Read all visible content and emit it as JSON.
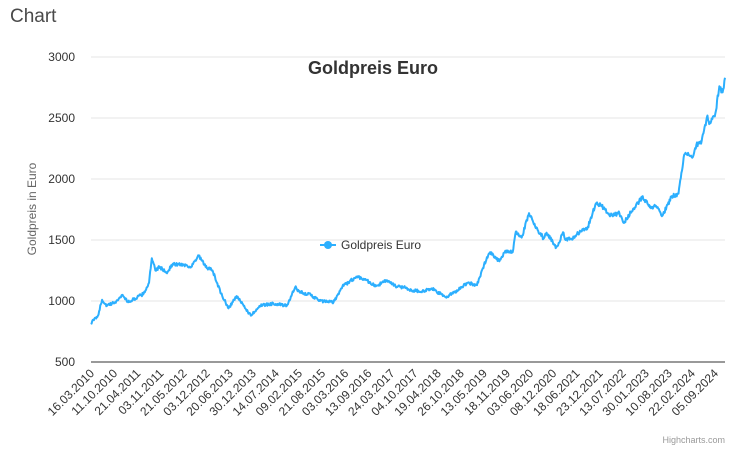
{
  "page": {
    "heading": "Chart"
  },
  "credits": "Highcharts.com",
  "colors": {
    "series": "#2caffe",
    "grid": "#e6e6e6",
    "axis_line": "#333333"
  },
  "chart_data": {
    "type": "line",
    "title": "Goldpreis Euro",
    "ylabel": "Goldpreis in Euro",
    "ylim": [
      500,
      3000
    ],
    "yticks": [
      500,
      1000,
      1500,
      2000,
      2500,
      3000
    ],
    "xlim": [
      "2010-03-16",
      "2025-03-31"
    ],
    "xtick_labels": [
      "16.03.2010",
      "11.10.2010",
      "21.04.2011",
      "03.11.2011",
      "21.05.2012",
      "03.12.2012",
      "20.06.2013",
      "30.12.2013",
      "14.07.2014",
      "09.02.2015",
      "21.08.2015",
      "03.03.2016",
      "13.09.2016",
      "24.03.2017",
      "04.10.2017",
      "19.04.2018",
      "26.10.2018",
      "13.05.2019",
      "18.11.2019",
      "03.06.2020",
      "08.12.2020",
      "18.06.2021",
      "23.12.2021",
      "13.07.2022",
      "30.01.2023",
      "10.08.2023",
      "22.02.2024",
      "05.09.2024"
    ],
    "legend": {
      "position": "center"
    },
    "grid": true,
    "series": [
      {
        "name": "Goldpreis Euro",
        "x": [
          "2010-03-16",
          "2010-05-15",
          "2010-06-20",
          "2010-08-01",
          "2010-10-11",
          "2010-12-15",
          "2011-02-01",
          "2011-04-21",
          "2011-06-15",
          "2011-08-01",
          "2011-08-25",
          "2011-09-25",
          "2011-11-03",
          "2011-12-29",
          "2012-02-20",
          "2012-05-21",
          "2012-08-01",
          "2012-10-05",
          "2012-12-03",
          "2013-02-01",
          "2013-04-16",
          "2013-06-20",
          "2013-08-28",
          "2013-12-30",
          "2014-03-15",
          "2014-07-14",
          "2014-11-06",
          "2015-01-23",
          "2015-02-09",
          "2015-06-01",
          "2015-08-21",
          "2015-12-17",
          "2016-03-03",
          "2016-07-06",
          "2016-09-13",
          "2016-12-15",
          "2017-03-24",
          "2017-06-06",
          "2017-09-08",
          "2017-10-04",
          "2018-01-25",
          "2018-04-19",
          "2018-08-16",
          "2018-10-26",
          "2019-02-20",
          "2019-05-13",
          "2019-08-07",
          "2019-09-04",
          "2019-11-18",
          "2020-01-08",
          "2020-03-17",
          "2020-04-14",
          "2020-06-03",
          "2020-08-06",
          "2020-09-28",
          "2020-11-30",
          "2020-12-08",
          "2021-01-05",
          "2021-03-30",
          "2021-06-01",
          "2021-06-18",
          "2021-08-09",
          "2021-11-16",
          "2021-12-23",
          "2022-03-08",
          "2022-04-18",
          "2022-07-13",
          "2022-09-28",
          "2022-11-03",
          "2023-01-30",
          "2023-04-13",
          "2023-06-29",
          "2023-08-10",
          "2023-10-06",
          "2023-12-27",
          "2024-02-22",
          "2024-03-08",
          "2024-04-12",
          "2024-05-20",
          "2024-06-25",
          "2024-07-26",
          "2024-09-05",
          "2024-10-30",
          "2024-11-14",
          "2025-01-07",
          "2025-02-10",
          "2025-03-10",
          "2025-03-31"
        ],
        "values": [
          820,
          880,
          1010,
          960,
          990,
          1050,
          990,
          1030,
          1060,
          1150,
          1350,
          1250,
          1280,
          1230,
          1300,
          1300,
          1280,
          1370,
          1280,
          1250,
          1060,
          940,
          1040,
          880,
          960,
          980,
          960,
          1120,
          1080,
          1050,
          1000,
          990,
          1120,
          1200,
          1180,
          1120,
          1170,
          1120,
          1110,
          1090,
          1080,
          1100,
          1030,
          1070,
          1150,
          1130,
          1360,
          1400,
          1330,
          1400,
          1400,
          1570,
          1520,
          1720,
          1610,
          1530,
          1510,
          1560,
          1440,
          1560,
          1500,
          1510,
          1590,
          1590,
          1800,
          1790,
          1700,
          1720,
          1640,
          1760,
          1850,
          1760,
          1780,
          1700,
          1860,
          1880,
          1990,
          2200,
          2200,
          2180,
          2280,
          2290,
          2520,
          2450,
          2540,
          2760,
          2710,
          2830
        ]
      }
    ]
  }
}
